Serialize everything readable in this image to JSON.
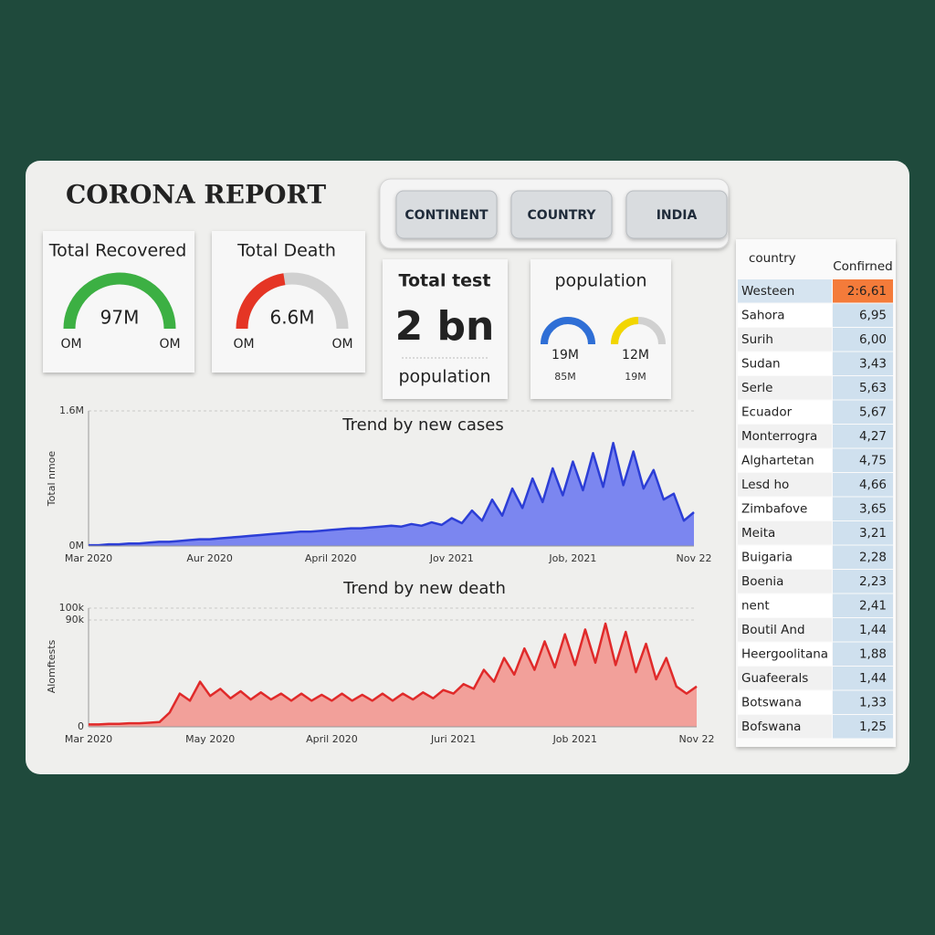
{
  "header": {
    "title": "CORONA REPORT"
  },
  "buttons": [
    "CONTINENT",
    "COUNTRY",
    "INDIA"
  ],
  "gauges": [
    {
      "title": "Total Recovered",
      "value_label": "97M",
      "min_label": "OM",
      "max_label": "OM",
      "fill": 1,
      "color": "#3cb043"
    },
    {
      "title": "Total Death",
      "value_label": "6.6M",
      "min_label": "OM",
      "max_label": "OM",
      "fill": 0.45,
      "color": "#e53525"
    }
  ],
  "total_test": {
    "title": "Total test",
    "value": "2 bn",
    "subtitle": "population"
  },
  "population": {
    "title": "population",
    "gauges": [
      {
        "value_label": "19M",
        "sub_label": "85M",
        "fill": 1,
        "color": "#2f6fd6"
      },
      {
        "value_label": "12M",
        "sub_label": "19M",
        "fill": 0.5,
        "color": "#f2d600"
      }
    ]
  },
  "table": {
    "columns": [
      "country",
      "Confirned"
    ],
    "rows": [
      [
        "Westeen",
        "2:6,61"
      ],
      [
        "Sahora",
        "6,95"
      ],
      [
        "Surih",
        "6,00"
      ],
      [
        "Sudan",
        "3,43"
      ],
      [
        "Serle",
        "5,63"
      ],
      [
        "Ecuador",
        "5,67"
      ],
      [
        "Monterrogra",
        "4,27"
      ],
      [
        "Alghartetan",
        "4,75"
      ],
      [
        "Lesd ho",
        "4,66"
      ],
      [
        "Zimbafove",
        "3,65"
      ],
      [
        "Meita",
        "3,21"
      ],
      [
        "Buigaria",
        "2,28"
      ],
      [
        "Boenia",
        "2,23"
      ],
      [
        "nent",
        "2,41"
      ],
      [
        "Boutil And",
        "1,44"
      ],
      [
        "Heergoolitana",
        "1,88"
      ],
      [
        "Guafeerals",
        "1,44"
      ],
      [
        "Botswana",
        "1,33"
      ],
      [
        "Bofswana",
        "1,25"
      ]
    ]
  },
  "chart_data": [
    {
      "type": "area",
      "title": "Trend by new cases",
      "y_label": "Total nmoe",
      "color": "#2c3ed6",
      "fill_color": "#7b86f0",
      "values": [
        0.01,
        0.01,
        0.02,
        0.02,
        0.03,
        0.03,
        0.04,
        0.05,
        0.05,
        0.06,
        0.07,
        0.08,
        0.08,
        0.09,
        0.1,
        0.11,
        0.12,
        0.13,
        0.14,
        0.15,
        0.16,
        0.17,
        0.17,
        0.18,
        0.19,
        0.2,
        0.21,
        0.21,
        0.22,
        0.23,
        0.24,
        0.23,
        0.26,
        0.24,
        0.28,
        0.25,
        0.33,
        0.27,
        0.42,
        0.3,
        0.55,
        0.36,
        0.68,
        0.45,
        0.8,
        0.52,
        0.92,
        0.6,
        1.0,
        0.66,
        1.1,
        0.7,
        1.22,
        0.72,
        1.12,
        0.68,
        0.9,
        0.55,
        0.62,
        0.3,
        0.4
      ],
      "xlim": [
        0,
        60
      ],
      "xticks": [
        {
          "value": 0,
          "label": "Mar 2020"
        },
        {
          "value": 12,
          "label": "Aur 2020"
        },
        {
          "value": 24,
          "label": "April 2020"
        },
        {
          "value": 36,
          "label": "Jov 2021"
        },
        {
          "value": 48,
          "label": "Job, 2021"
        },
        {
          "value": 60,
          "label": "Nov 22"
        }
      ],
      "ylim": [
        0,
        1.6
      ],
      "yticks": [
        {
          "value": 0,
          "label": "0M"
        },
        {
          "value": 1.6,
          "label": "1.6M"
        }
      ],
      "grid": true
    },
    {
      "type": "area",
      "title": "Trend by new death",
      "y_label": "Alomftests",
      "color": "#e02a2a",
      "fill_color": "#f2a09a",
      "values": [
        2000,
        2000,
        2500,
        2500,
        3000,
        3000,
        3500,
        4000,
        12000,
        28000,
        22000,
        38000,
        26000,
        32000,
        24000,
        30000,
        23000,
        29000,
        23000,
        28000,
        22000,
        28000,
        22000,
        27000,
        22000,
        28000,
        22000,
        27000,
        22000,
        28000,
        22000,
        28000,
        23000,
        29000,
        24000,
        31000,
        28000,
        36000,
        32000,
        48000,
        38000,
        58000,
        44000,
        66000,
        48000,
        72000,
        50000,
        78000,
        52000,
        82000,
        54000,
        87000,
        52000,
        80000,
        46000,
        70000,
        40000,
        58000,
        34000,
        28000,
        34000
      ],
      "xlim": [
        0,
        60
      ],
      "xticks": [
        {
          "value": 0,
          "label": "Mar 2020"
        },
        {
          "value": 12,
          "label": "May 2020"
        },
        {
          "value": 24,
          "label": "April 2020"
        },
        {
          "value": 36,
          "label": "Juri 2021"
        },
        {
          "value": 48,
          "label": "Job 2021"
        },
        {
          "value": 60,
          "label": "Nov 22"
        }
      ],
      "ylim": [
        0,
        100000
      ],
      "yticks": [
        0,
        {
          "value": 90000,
          "label": "90k"
        },
        {
          "value": 100000,
          "label": "100k"
        }
      ],
      "grid": true
    }
  ]
}
